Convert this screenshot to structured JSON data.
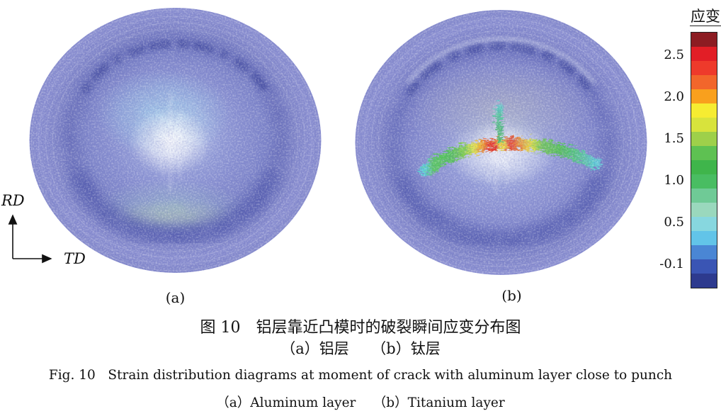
{
  "axes": {
    "vertical_label": "RD",
    "horizontal_label": "TD"
  },
  "panels": [
    {
      "label": "(a)"
    },
    {
      "label": "(b)"
    }
  ],
  "colorbar": {
    "title": "应变",
    "ticks": [
      "2.5",
      "2.0",
      "1.5",
      "1.0",
      "0.5",
      "-0.1"
    ],
    "band_colors": [
      "#8c1c22",
      "#e21e26",
      "#ee3a2b",
      "#f2662b",
      "#f9a01d",
      "#f6ec31",
      "#d8e33c",
      "#9ed04a",
      "#5ec152",
      "#3fb54b",
      "#49bd62",
      "#6fca96",
      "#9ad8bd",
      "#87d7df",
      "#62c4e8",
      "#4a86d4",
      "#3a55b4",
      "#2d3a8e"
    ]
  },
  "captions": {
    "cn_title": "图 10　铝层靠近凸模时的破裂瞬间应变分布图",
    "cn_sub": "（a）铝层　　（b）钛层",
    "en_title": "Fig. 10   Strain distribution diagrams at moment of crack with aluminum layer close to punch",
    "en_sub": "（a）Aluminum layer　 （b）Titanium layer"
  }
}
